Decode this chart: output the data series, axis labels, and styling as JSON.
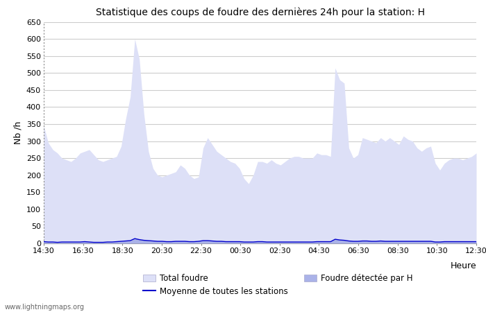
{
  "title": "Statistique des coups de foudre des dernières 24h pour la station: H",
  "xlabel": "Heure",
  "ylabel": "Nb /h",
  "ylim": [
    0,
    650
  ],
  "yticks": [
    0,
    50,
    100,
    150,
    200,
    250,
    300,
    350,
    400,
    450,
    500,
    550,
    600,
    650
  ],
  "xtick_labels": [
    "14:30",
    "16:30",
    "18:30",
    "20:30",
    "22:30",
    "00:30",
    "02:30",
    "04:30",
    "06:30",
    "08:30",
    "10:30",
    "12:30"
  ],
  "bg_color": "#ffffff",
  "plot_bg_color": "#ffffff",
  "grid_color": "#cccccc",
  "fill_total_color": "#dde0f7",
  "fill_station_color": "#aab2e8",
  "line_color": "#0000cc",
  "watermark": "www.lightningmaps.org",
  "legend_total": "Total foudre",
  "legend_station": "Foudre détectée par H",
  "legend_mean": "Moyenne de toutes les stations",
  "total_foudre": [
    345,
    295,
    275,
    265,
    250,
    245,
    240,
    250,
    265,
    270,
    275,
    260,
    245,
    240,
    245,
    250,
    255,
    285,
    365,
    430,
    600,
    540,
    380,
    270,
    220,
    200,
    195,
    200,
    205,
    210,
    230,
    220,
    200,
    190,
    195,
    280,
    310,
    290,
    270,
    260,
    250,
    240,
    235,
    220,
    190,
    175,
    200,
    240,
    240,
    235,
    245,
    235,
    230,
    240,
    250,
    255,
    255,
    250,
    250,
    250,
    265,
    260,
    260,
    255,
    515,
    480,
    470,
    280,
    250,
    260,
    310,
    305,
    300,
    295,
    310,
    300,
    310,
    300,
    290,
    315,
    305,
    300,
    280,
    270,
    280,
    285,
    235,
    215,
    235,
    245,
    250,
    250,
    245,
    250,
    255,
    265
  ],
  "station_foudre": [
    5,
    4,
    4,
    3,
    4,
    4,
    4,
    4,
    4,
    5,
    4,
    3,
    3,
    3,
    4,
    4,
    5,
    6,
    7,
    8,
    15,
    12,
    10,
    9,
    8,
    7,
    7,
    6,
    6,
    7,
    7,
    7,
    6,
    6,
    7,
    9,
    9,
    8,
    7,
    7,
    6,
    6,
    6,
    6,
    5,
    5,
    5,
    6,
    6,
    5,
    5,
    5,
    5,
    5,
    5,
    5,
    5,
    5,
    5,
    5,
    6,
    6,
    6,
    6,
    13,
    11,
    10,
    8,
    7,
    7,
    8,
    8,
    7,
    7,
    8,
    7,
    7,
    7,
    7,
    7,
    7,
    7,
    7,
    7,
    7,
    7,
    5,
    5,
    6,
    6,
    6,
    6,
    6,
    6,
    6,
    6
  ],
  "mean_line": [
    5,
    4,
    4,
    3,
    4,
    4,
    4,
    4,
    4,
    5,
    4,
    3,
    3,
    3,
    4,
    4,
    5,
    6,
    7,
    8,
    14,
    11,
    9,
    8,
    7,
    6,
    6,
    5,
    5,
    6,
    6,
    6,
    5,
    5,
    6,
    8,
    8,
    7,
    6,
    6,
    5,
    5,
    5,
    5,
    4,
    4,
    4,
    5,
    5,
    4,
    4,
    4,
    4,
    4,
    4,
    4,
    4,
    4,
    4,
    4,
    5,
    5,
    5,
    5,
    12,
    10,
    9,
    7,
    6,
    6,
    7,
    7,
    6,
    6,
    7,
    6,
    6,
    6,
    6,
    6,
    6,
    6,
    6,
    6,
    6,
    6,
    4,
    4,
    5,
    5,
    5,
    5,
    5,
    5,
    5,
    5
  ]
}
